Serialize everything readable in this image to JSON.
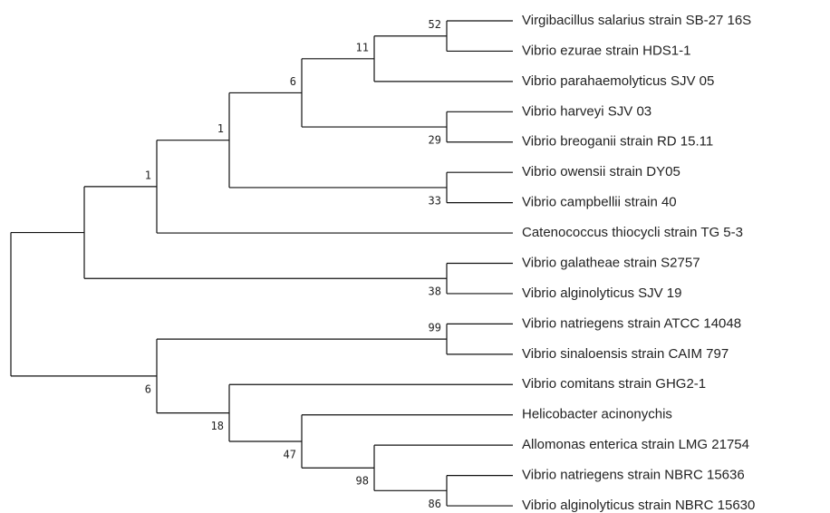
{
  "tree": {
    "leaves": [
      "Virgibacillus salarius strain SB-27 16S",
      "Vibrio ezurae strain HDS1-1",
      "Vibrio parahaemolyticus SJV 05",
      "Vibrio harveyi SJV 03",
      "Vibrio breoganii strain RD 15.11",
      "Vibrio owensii strain DY05",
      "Vibrio campbellii strain 40",
      "Catenococcus thiocycli strain TG 5-3",
      "Vibrio galatheae strain S2757",
      "Vibrio alginolyticus SJV 19",
      "Vibrio natriegens strain ATCC 14048",
      "Vibrio sinaloensis strain CAIM 797",
      "Vibrio comitans strain GHG2-1",
      "Helicobacter acinonychis",
      "Allomonas enterica strain LMG 21754",
      "Vibrio natriegens strain NBRC 15636",
      "Vibrio alginolyticus strain NBRC 15630"
    ],
    "bootstraps": [
      52,
      11,
      6,
      29,
      1,
      33,
      1,
      38,
      99,
      6,
      18,
      47,
      98,
      86
    ]
  }
}
